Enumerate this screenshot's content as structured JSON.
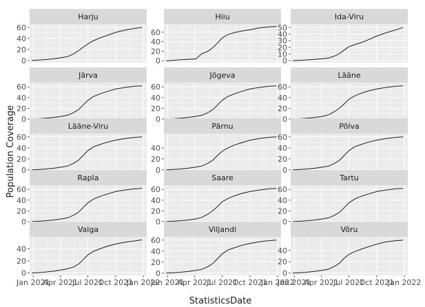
{
  "chart_data": {
    "type": "line",
    "xlabel": "StatisticsDate",
    "ylabel": "Population Coverage",
    "x_ticks": [
      "Jan 2021",
      "Apr 2021",
      "Jul 2021",
      "Oct 2021",
      "Jan 2022"
    ],
    "x_tick_dates": [
      "2021-01-01",
      "2021-04-01",
      "2021-07-01",
      "2021-10-01",
      "2022-01-01"
    ],
    "x_range": [
      "2020-12-20",
      "2022-01-12"
    ],
    "grid": true,
    "line_color": "#1a1a1a",
    "panel_background": "#ebebeb",
    "strip_background": "#d9d9d9",
    "grid_color": "#ffffff",
    "dates": [
      "2020-12-27",
      "2021-01-15",
      "2021-02-10",
      "2021-03-10",
      "2021-04-05",
      "2021-04-25",
      "2021-05-15",
      "2021-06-01",
      "2021-06-15",
      "2021-07-01",
      "2021-07-20",
      "2021-08-10",
      "2021-09-01",
      "2021-10-01",
      "2021-11-01",
      "2021-12-01",
      "2021-12-28"
    ],
    "panels": [
      {
        "name": "Harju",
        "yticks": [
          0,
          20,
          40,
          60
        ],
        "ylim": [
          -4,
          66
        ],
        "values": [
          0,
          0.5,
          1.5,
          3,
          5,
          7,
          12,
          18,
          24,
          30,
          36,
          41,
          45,
          51,
          55,
          58,
          60
        ]
      },
      {
        "name": "Hiiu",
        "yticks": [
          0,
          20,
          40,
          60
        ],
        "ylim": [
          -4,
          77
        ],
        "values": [
          0,
          0.5,
          2,
          3,
          4,
          15,
          20,
          28,
          37,
          48,
          55,
          59,
          62,
          65,
          69,
          71,
          72
        ]
      },
      {
        "name": "Ida-Viru",
        "yticks": [
          0,
          10,
          20,
          30,
          40,
          50
        ],
        "ylim": [
          -3,
          55
        ],
        "values": [
          0,
          0.3,
          1,
          2,
          3,
          4,
          7,
          11,
          16,
          21,
          24,
          27,
          31,
          37,
          42,
          46,
          50
        ]
      },
      {
        "name": "Järva",
        "yticks": [
          0,
          20,
          40,
          60
        ],
        "ylim": [
          -4,
          68
        ],
        "values": [
          0,
          0.5,
          1.5,
          3,
          5,
          7,
          12,
          18,
          26,
          35,
          42,
          47,
          51,
          56,
          59,
          61,
          62
        ]
      },
      {
        "name": "Jõgeva",
        "yticks": [
          0,
          20,
          40,
          60
        ],
        "ylim": [
          -4,
          68
        ],
        "values": [
          0,
          0.5,
          1.5,
          3,
          5,
          7,
          12,
          18,
          26,
          35,
          42,
          47,
          51,
          56,
          59,
          61,
          62
        ]
      },
      {
        "name": "Lääne",
        "yticks": [
          0,
          20,
          40,
          60
        ],
        "ylim": [
          -4,
          68
        ],
        "values": [
          0,
          0.5,
          1.5,
          3,
          5,
          8,
          14,
          21,
          28,
          37,
          43,
          48,
          52,
          56,
          59,
          61,
          62
        ]
      },
      {
        "name": "Lääne-Viru",
        "yticks": [
          0,
          20,
          40,
          60
        ],
        "ylim": [
          -4,
          66
        ],
        "values": [
          0,
          0.5,
          1.5,
          3,
          5,
          7,
          12,
          18,
          26,
          35,
          42,
          46,
          50,
          54,
          57,
          59,
          60
        ]
      },
      {
        "name": "Pärnu",
        "yticks": [
          0,
          20,
          40
        ],
        "ylim": [
          -4,
          66
        ],
        "values": [
          0,
          0.5,
          1.5,
          3,
          5,
          7,
          12,
          18,
          26,
          34,
          40,
          45,
          49,
          54,
          57,
          59,
          60
        ]
      },
      {
        "name": "Põlva",
        "yticks": [
          0,
          20,
          40,
          60
        ],
        "ylim": [
          -4,
          66
        ],
        "values": [
          0,
          0.5,
          1.5,
          3,
          5,
          7,
          12,
          18,
          26,
          35,
          42,
          46,
          50,
          54,
          57,
          59,
          60
        ]
      },
      {
        "name": "Rapla",
        "yticks": [
          0,
          20,
          40,
          60
        ],
        "ylim": [
          -4,
          68
        ],
        "values": [
          0,
          0.5,
          1.5,
          3,
          5,
          7,
          12,
          18,
          26,
          35,
          42,
          47,
          51,
          56,
          59,
          61,
          62
        ]
      },
      {
        "name": "Saare",
        "yticks": [
          0,
          20,
          40,
          60
        ],
        "ylim": [
          -4,
          68
        ],
        "values": [
          0,
          0.5,
          1.5,
          3,
          5,
          8,
          14,
          21,
          28,
          37,
          43,
          48,
          52,
          56,
          59,
          61,
          62
        ]
      },
      {
        "name": "Tartu",
        "yticks": [
          0,
          20,
          40,
          60
        ],
        "ylim": [
          -4,
          68
        ],
        "values": [
          0,
          0.5,
          1.5,
          3,
          5,
          7,
          12,
          18,
          26,
          35,
          42,
          47,
          51,
          56,
          59,
          61,
          62
        ]
      },
      {
        "name": "Valga",
        "yticks": [
          0,
          20,
          40
        ],
        "ylim": [
          -4,
          60
        ],
        "values": [
          0,
          0.5,
          1.5,
          3,
          5,
          7,
          10,
          15,
          22,
          30,
          36,
          40,
          44,
          48,
          51,
          53,
          55
        ]
      },
      {
        "name": "Viljandi",
        "yticks": [
          0,
          20,
          40,
          60
        ],
        "ylim": [
          -4,
          66
        ],
        "values": [
          0,
          0.5,
          1.5,
          3,
          5,
          7,
          12,
          18,
          26,
          35,
          42,
          46,
          50,
          54,
          57,
          59,
          60
        ]
      },
      {
        "name": "Võru",
        "yticks": [
          0,
          20,
          40
        ],
        "ylim": [
          -4,
          64
        ],
        "values": [
          0,
          0.5,
          1.5,
          3,
          5,
          7,
          12,
          18,
          26,
          33,
          38,
          42,
          46,
          51,
          55,
          57,
          58
        ]
      }
    ]
  }
}
